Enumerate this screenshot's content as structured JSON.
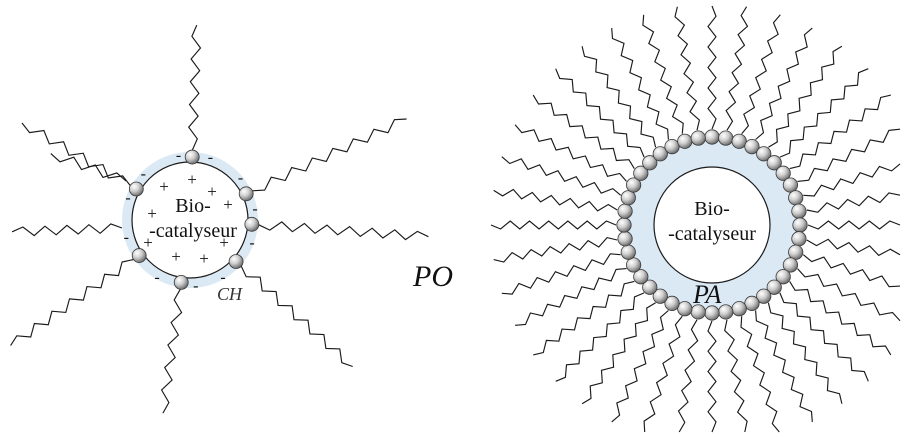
{
  "left_complex": {
    "core_label_line1": "Bio-",
    "core_label_line2": "-catalyseur",
    "label": "CH",
    "inner_charge": "+",
    "outer_charge": "-"
  },
  "middle_label": "PO",
  "right_complex": {
    "core_label_line1": "Bio-",
    "core_label_line2": "-catalyseur",
    "label": "PA"
  },
  "colors": {
    "shell_fill": "#dbe9f4",
    "core_fill": "#ffffff",
    "chain_stroke": "#1a1a1a",
    "bead_light": "#f2f2f2",
    "bead_dark": "#6e6e6e"
  }
}
